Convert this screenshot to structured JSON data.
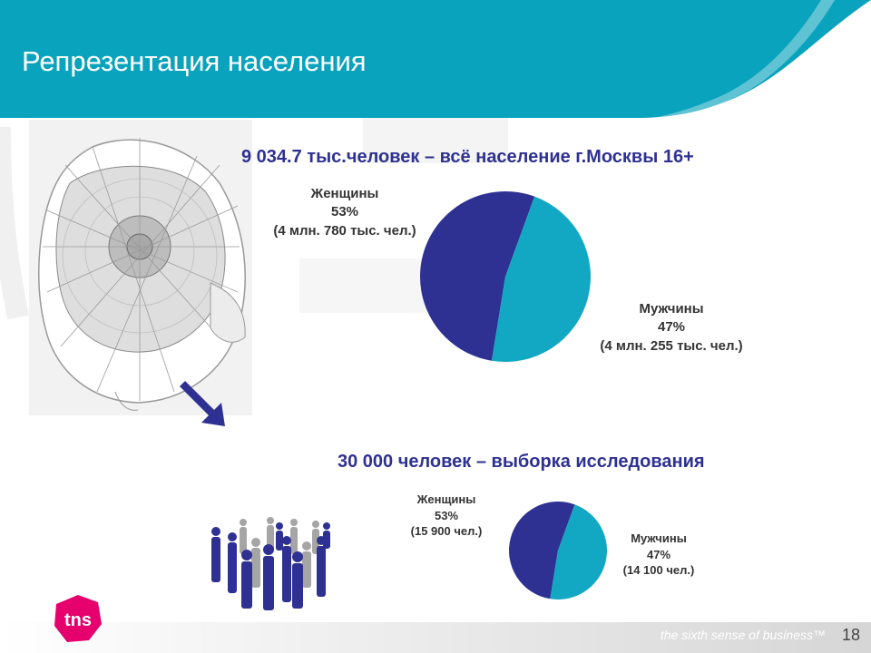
{
  "slide": {
    "title": "Репрезентация населения",
    "page_number": "18",
    "tagline": "the sixth sense of business™",
    "logo_text": "tns",
    "colors": {
      "header": "#0aa3bd",
      "women": "#2e3192",
      "men": "#12a8c4",
      "headline_text": "#2e3192"
    }
  },
  "population": {
    "headline": "9 034.7 тыс.человек – всё население г.Москвы 16+",
    "women": {
      "label": "Женщины",
      "percent": "53%",
      "count": "(4 млн. 780 тыс. чел.)",
      "share": 53
    },
    "men": {
      "label": "Мужчины",
      "percent": "47%",
      "count": "(4 млн. 255 тыс. чел.)",
      "share": 47
    }
  },
  "sample": {
    "headline": "30 000 человек – выборка исследования",
    "women": {
      "label": "Женщины",
      "percent": "53%",
      "count": "(15 900 чел.)",
      "share": 53
    },
    "men": {
      "label": "Мужчины",
      "percent": "47%",
      "count": "(14 100 чел.)",
      "share": 47
    }
  },
  "icons": {
    "map": "moscow-map-icon",
    "arrow": "arrow-down-right-icon",
    "people": "crowd-icon"
  }
}
